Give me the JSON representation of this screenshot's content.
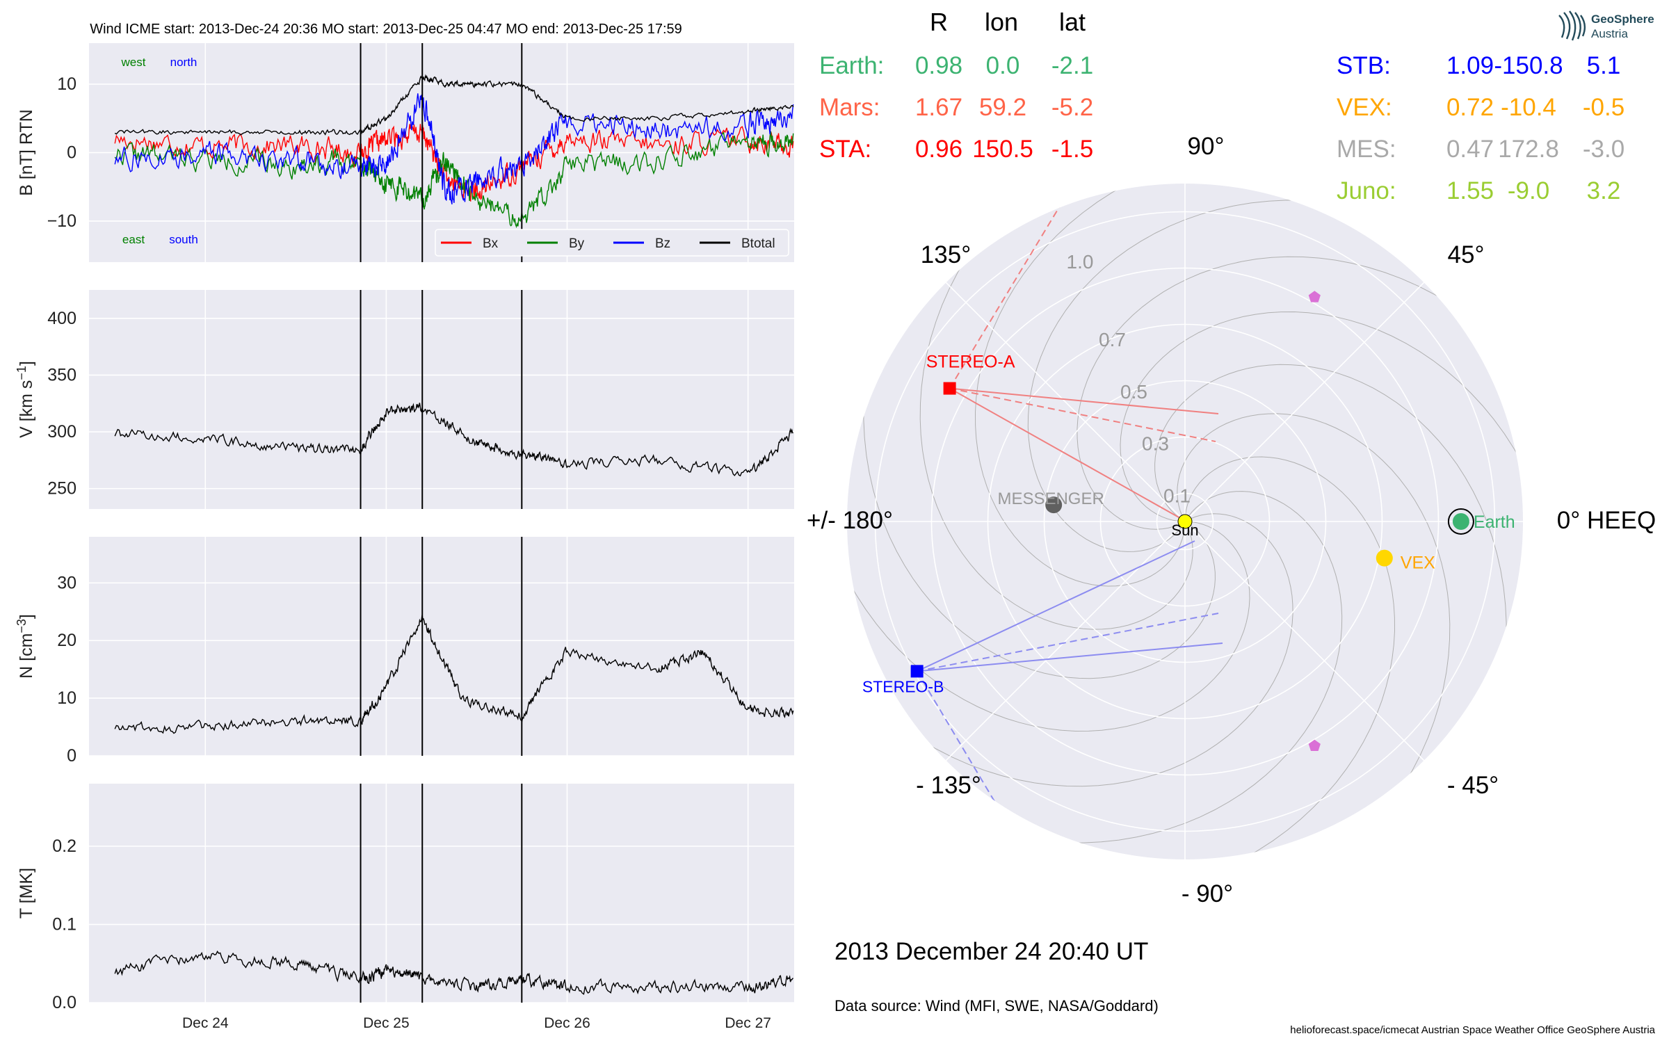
{
  "colors": {
    "axes_bg": "#eaeaf2",
    "grid": "#ffffff",
    "earth": "#3cb371",
    "mars": "#ff6347",
    "sta": "#ff0000",
    "stb": "#0000ff",
    "vex": "#ffa500",
    "mes": "#a9a9a9",
    "juno": "#9acd32",
    "bx": "#ff0000",
    "by": "#008000",
    "bz": "#0000ff",
    "btotal": "#000000",
    "sun": "#ffff00",
    "messenger_dot": "#606060",
    "comet": "#da70d6"
  },
  "title": "Wind    ICME start: 2013-Dec-24 20:36   MO start: 2013-Dec-25 04:47   MO end: 2013-Dec-25 17:59",
  "panel_labels": {
    "west": "west",
    "north": "north",
    "east": "east",
    "south": "south"
  },
  "legend": [
    "Bx",
    "By",
    "Bz",
    "Btotal"
  ],
  "chart_data": [
    {
      "type": "line",
      "ylabel": "B [nT] RTN",
      "ylim": [
        -16,
        16
      ],
      "yticks": [
        "−10",
        "0",
        "10"
      ],
      "ytick_values": [
        -10,
        0,
        10
      ],
      "x": [
        "2013-12-23 12:00",
        "2013-12-24 00:00",
        "2013-12-24 12:00",
        "2013-12-24 20:36",
        "2013-12-25 00:00",
        "2013-12-25 04:47",
        "2013-12-25 08:00",
        "2013-12-25 12:00",
        "2013-12-25 17:59",
        "2013-12-26 00:00",
        "2013-12-26 12:00",
        "2013-12-27 00:00",
        "2013-12-27 06:00"
      ],
      "series": [
        {
          "name": "Bx",
          "values": [
            2,
            1,
            1,
            0,
            2,
            3,
            -4,
            -6,
            -2,
            2,
            1,
            2,
            1
          ]
        },
        {
          "name": "By",
          "values": [
            0,
            -1,
            -2,
            -1,
            -4,
            -7,
            -1,
            -7,
            -10,
            -2,
            -1,
            1,
            2
          ]
        },
        {
          "name": "Bz",
          "values": [
            -1,
            0,
            -1,
            -2,
            -2,
            8,
            -6,
            -4,
            -2,
            5,
            3,
            4,
            5
          ]
        },
        {
          "name": "Btotal",
          "values": [
            3,
            3,
            3,
            3,
            5,
            11,
            10,
            10,
            10,
            5,
            5,
            6,
            7
          ]
        }
      ]
    },
    {
      "type": "line",
      "ylabel": "V [km s^-1]",
      "ylim": [
        232,
        425
      ],
      "yticks": [
        "250",
        "300",
        "350",
        "400"
      ],
      "ytick_values": [
        250,
        300,
        350,
        400
      ],
      "x": [
        "2013-12-23 12:00",
        "2013-12-24 00:00",
        "2013-12-24 12:00",
        "2013-12-24 20:36",
        "2013-12-25 00:00",
        "2013-12-25 04:47",
        "2013-12-25 12:00",
        "2013-12-25 17:59",
        "2013-12-26 00:00",
        "2013-12-26 12:00",
        "2013-12-27 00:00",
        "2013-12-27 06:00"
      ],
      "series": [
        {
          "name": "",
          "values": [
            298,
            294,
            285,
            285,
            318,
            322,
            290,
            280,
            272,
            275,
            262,
            300
          ]
        }
      ]
    },
    {
      "type": "line",
      "ylabel": "N [cm^-3]",
      "ylim": [
        0,
        38
      ],
      "yticks": [
        "0",
        "10",
        "20",
        "30"
      ],
      "ytick_values": [
        0,
        10,
        20,
        30
      ],
      "x": [
        "2013-12-23 12:00",
        "2013-12-24 00:00",
        "2013-12-24 12:00",
        "2013-12-24 20:36",
        "2013-12-25 00:00",
        "2013-12-25 04:47",
        "2013-12-25 10:00",
        "2013-12-25 17:59",
        "2013-12-26 00:00",
        "2013-12-26 12:00",
        "2013-12-26 18:00",
        "2013-12-27 00:00",
        "2013-12-27 06:00"
      ],
      "series": [
        {
          "name": "",
          "values": [
            5,
            5,
            6,
            6,
            12,
            24,
            10,
            7,
            18,
            15,
            18,
            8,
            7
          ]
        }
      ]
    },
    {
      "type": "line",
      "ylabel": "T [MK]",
      "ylim": [
        0,
        0.28
      ],
      "yticks": [
        "0.0",
        "0.1",
        "0.2"
      ],
      "ytick_values": [
        0,
        0.1,
        0.2
      ],
      "x": [
        "2013-12-23 12:00",
        "2013-12-24 00:00",
        "2013-12-24 12:00",
        "2013-12-24 20:36",
        "2013-12-25 00:00",
        "2013-12-25 04:47",
        "2013-12-25 12:00",
        "2013-12-25 17:59",
        "2013-12-26 00:00",
        "2013-12-26 12:00",
        "2013-12-27 00:00",
        "2013-12-27 06:00"
      ],
      "series": [
        {
          "name": "",
          "values": [
            0.04,
            0.06,
            0.05,
            0.03,
            0.04,
            0.03,
            0.02,
            0.03,
            0.02,
            0.02,
            0.02,
            0.03
          ]
        }
      ]
    }
  ],
  "x_ticks": [
    "Dec 24",
    "Dec 25",
    "Dec 26",
    "Dec 27"
  ],
  "x_tick_values": [
    "2013-12-24",
    "2013-12-25",
    "2013-12-26",
    "2013-12-27"
  ],
  "event_lines": [
    "2013-12-24 20:36",
    "2013-12-25 04:47",
    "2013-12-25 17:59"
  ],
  "table": {
    "header": [
      "R",
      "lon",
      "lat"
    ],
    "rows": [
      {
        "name": "Earth:",
        "r": "0.98",
        "lon": "0.0",
        "lat": "-2.1",
        "color": "#3cb371"
      },
      {
        "name": "Mars:",
        "r": "1.67",
        "lon": "59.2",
        "lat": "-5.2",
        "color": "#ff6347"
      },
      {
        "name": "STA:",
        "r": "0.96",
        "lon": "150.5",
        "lat": "-1.5",
        "color": "#ff0000"
      },
      {
        "name": "STB:",
        "r": "1.09",
        "lon": "-150.8",
        "lat": "5.1",
        "color": "#0000ff"
      },
      {
        "name": "VEX:",
        "r": "0.72",
        "lon": "-10.4",
        "lat": "-0.5",
        "color": "#ffa500"
      },
      {
        "name": "MES:",
        "r": "0.47",
        "lon": "172.8",
        "lat": "-3.0",
        "color": "#a9a9a9"
      },
      {
        "name": "Juno:",
        "r": "1.55",
        "lon": "-9.0",
        "lat": "3.2",
        "color": "#9acd32"
      }
    ]
  },
  "polar": {
    "angle_labels": [
      "0° HEEQ",
      "45°",
      "90°",
      "135°",
      "+/- 180°",
      "- 135°",
      "- 90°",
      "- 45°"
    ],
    "radial_labels": [
      "0.1",
      "0.3",
      "0.5",
      "0.7",
      "1.0"
    ],
    "radial_values": [
      0.1,
      0.3,
      0.5,
      0.7,
      1.0
    ],
    "rmax": 1.2,
    "bodies": [
      {
        "label": "Earth",
        "r": 0.98,
        "lon": 0.0
      },
      {
        "label": "VEX",
        "r": 0.72,
        "lon": -10.4
      },
      {
        "label": "MESSENGER",
        "r": 0.47,
        "lon": 172.8
      },
      {
        "label": "STEREO-A",
        "r": 0.96,
        "lon": 150.5
      },
      {
        "label": "STEREO-B",
        "r": 1.09,
        "lon": -150.8
      },
      {
        "label": "Sun",
        "r": 0.0,
        "lon": 0.0
      }
    ],
    "extra_markers": [
      {
        "r": 0.92,
        "lon": 60
      },
      {
        "r": 0.92,
        "lon": -60
      }
    ]
  },
  "date_text": "2013 December 24  20:40 UT",
  "source_text": "Data source: Wind (MFI, SWE, NASA/Goddard)",
  "footer_text": "helioforecast.space/icmecat   Austrian Space Weather Office   GeoSphere Austria",
  "logo": {
    "line1": "GeoSphere",
    "line2": "Austria"
  }
}
